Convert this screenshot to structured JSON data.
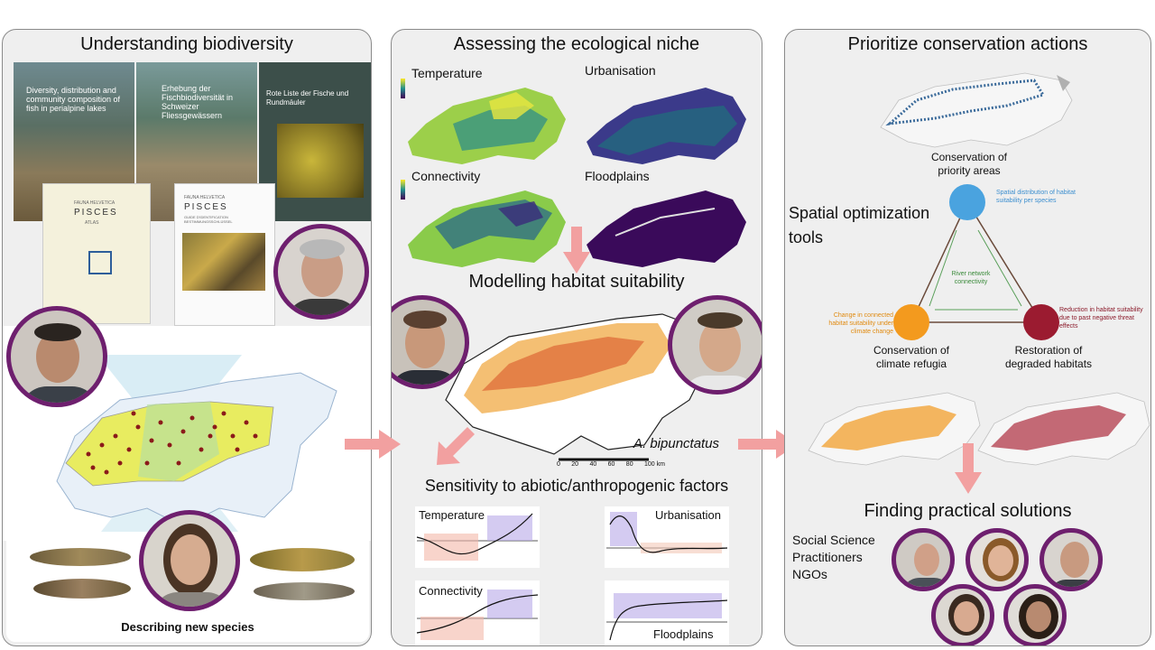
{
  "panel1": {
    "title": "Understanding biodiversity",
    "book1_title": "Diversity, distribution and community composition of fish in perialpine lakes",
    "book2_title": "Erhebung der Fischbiodiversität in Schweizer Fliessgewässern",
    "book3_title": "Rote Liste der Fische und Rundmäuler",
    "book4_series": "FAUNA HELVETICA",
    "book4_title": "PISCES",
    "book4_sub": "ATLAS",
    "book5_series": "FAUNA HELVETICA",
    "book5_title": "PISCES",
    "book5_sub": "GUIDE D'IDENTIFICATION BESTIMMUNGSSCHLÜSSEL",
    "caption": "Describing new species"
  },
  "panel2": {
    "title": "Assessing the ecological niche",
    "maps": [
      "Temperature",
      "Urbanisation",
      "Connectivity",
      "Floodplains"
    ],
    "modelling_title": "Modelling habitat suitability",
    "species": "A. bipunctatus",
    "scalebar": [
      "0",
      "20",
      "40",
      "60",
      "80",
      "100 km"
    ],
    "sensitivity_title": "Sensitivity to abiotic/anthropogenic factors",
    "plots": [
      "Temperature",
      "Urbanisation",
      "Connectivity",
      "Floodplains"
    ]
  },
  "panel3": {
    "title": "Prioritize conservation actions",
    "priority_label": "Conservation of priority areas",
    "spatial_tools": "Spatial optimization tools",
    "blue_note": "Spatial distribution of habitat suitability per species",
    "center_note": "River network connectivity",
    "orange_note": "Change in connected habitat suitability under climate change",
    "red_note": "Reduction in habitat suitability due to past negative threat effects",
    "refugia_label": "Conservation of climate refugia",
    "restoration_label": "Restoration of degraded habitats",
    "solutions_title": "Finding practical solutions",
    "stakeholders": [
      "Social Science",
      "Practitioners",
      "NGOs"
    ]
  },
  "colors": {
    "frame": "#6e1f6e",
    "arrow": "#f2a0a0",
    "blue_node": "#4aa3df",
    "orange_node": "#f39a1e",
    "red_node": "#9b1b30",
    "network_green": "#5aa05a"
  }
}
